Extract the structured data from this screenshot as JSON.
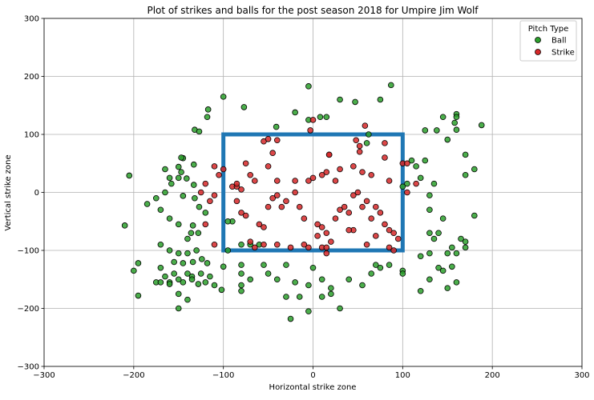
{
  "chart_data": {
    "type": "scatter",
    "title": "Plot of strikes and balls for the post season 2018 for Umpire Jim Wolf",
    "xlabel": "Horizontal strike zone",
    "ylabel": "Vertical strike zone",
    "xlim": [
      -300,
      300
    ],
    "ylim": [
      -300,
      300
    ],
    "xticks": [
      "−300",
      "−200",
      "−100",
      "0",
      "100",
      "200",
      "300"
    ],
    "yticks": [
      "−300",
      "−200",
      "−100",
      "0",
      "100",
      "200",
      "300"
    ],
    "grid": true,
    "legend": {
      "title": "Pitch Type",
      "placement": "top-right"
    },
    "strike_zone": {
      "x": [
        -100,
        100
      ],
      "y": [
        -100,
        100
      ],
      "color": "#1f77b4"
    },
    "series": [
      {
        "name": "Ball",
        "color": "#2ca02c",
        "points": [
          [
            -100,
            165
          ],
          [
            -77,
            147
          ],
          [
            -117,
            143
          ],
          [
            -118,
            130
          ],
          [
            -132,
            108
          ],
          [
            -127,
            105
          ],
          [
            -5,
            183
          ],
          [
            -20,
            138
          ],
          [
            -5,
            125
          ],
          [
            8,
            130
          ],
          [
            15,
            130
          ],
          [
            30,
            160
          ],
          [
            47,
            156
          ],
          [
            75,
            160
          ],
          [
            87,
            185
          ],
          [
            -41,
            113
          ],
          [
            62,
            100
          ],
          [
            160,
            135
          ],
          [
            160,
            130
          ],
          [
            158,
            120
          ],
          [
            145,
            130
          ],
          [
            160,
            108
          ],
          [
            138,
            107
          ],
          [
            125,
            107
          ],
          [
            150,
            91
          ],
          [
            188,
            116
          ],
          [
            170,
            65
          ],
          [
            -205,
            29
          ],
          [
            -145,
            59
          ],
          [
            -147,
            60
          ],
          [
            -150,
            44
          ],
          [
            -147,
            35
          ],
          [
            -133,
            48
          ],
          [
            -165,
            40
          ],
          [
            -160,
            25
          ],
          [
            -150,
            25
          ],
          [
            -133,
            13
          ],
          [
            -141,
            24
          ],
          [
            -158,
            15
          ],
          [
            -165,
            0
          ],
          [
            -175,
            -10
          ],
          [
            -185,
            -20
          ],
          [
            -145,
            -6
          ],
          [
            -132,
            -10
          ],
          [
            -127,
            -25
          ],
          [
            -170,
            -30
          ],
          [
            -160,
            -45
          ],
          [
            -150,
            -55
          ],
          [
            -134,
            -57
          ],
          [
            -128,
            -70
          ],
          [
            -120,
            -35
          ],
          [
            -136,
            -70
          ],
          [
            -210,
            -57
          ],
          [
            -140,
            -80
          ],
          [
            -170,
            -90
          ],
          [
            -160,
            -100
          ],
          [
            -150,
            -105
          ],
          [
            -140,
            -105
          ],
          [
            -130,
            -100
          ],
          [
            -155,
            -120
          ],
          [
            -145,
            -122
          ],
          [
            -134,
            -120
          ],
          [
            -124,
            -115
          ],
          [
            -118,
            -122
          ],
          [
            -200,
            -135
          ],
          [
            -195,
            -122
          ],
          [
            -170,
            -130
          ],
          [
            -155,
            -140
          ],
          [
            -140,
            -140
          ],
          [
            -135,
            -145
          ],
          [
            -125,
            -140
          ],
          [
            -115,
            -145
          ],
          [
            -175,
            -155
          ],
          [
            -165,
            -145
          ],
          [
            -160,
            -155
          ],
          [
            -150,
            -150
          ],
          [
            -145,
            -155
          ],
          [
            -135,
            -150
          ],
          [
            -128,
            -158
          ],
          [
            -120,
            -155
          ],
          [
            -110,
            -160
          ],
          [
            -102,
            -168
          ],
          [
            -170,
            -155
          ],
          [
            -160,
            -158
          ],
          [
            -150,
            -175
          ],
          [
            -140,
            -185
          ],
          [
            -195,
            -178
          ],
          [
            -150,
            -200
          ],
          [
            -100,
            -128
          ],
          [
            -80,
            -125
          ],
          [
            -90,
            -50
          ],
          [
            -80,
            -90
          ],
          [
            -70,
            -90
          ],
          [
            -60,
            -90
          ],
          [
            -55,
            -125
          ],
          [
            -50,
            -140
          ],
          [
            -80,
            -140
          ],
          [
            -70,
            -150
          ],
          [
            -80,
            -160
          ],
          [
            -80,
            -170
          ],
          [
            -40,
            -150
          ],
          [
            -30,
            -180
          ],
          [
            -25,
            -218
          ],
          [
            -15,
            -180
          ],
          [
            -5,
            -160
          ],
          [
            10,
            -180
          ],
          [
            20,
            -175
          ],
          [
            20,
            -165
          ],
          [
            30,
            -200
          ],
          [
            -30,
            -125
          ],
          [
            -20,
            -155
          ],
          [
            0,
            -130
          ],
          [
            10,
            -150
          ],
          [
            -5,
            -205
          ],
          [
            40,
            -150
          ],
          [
            55,
            -160
          ],
          [
            65,
            -140
          ],
          [
            70,
            -125
          ],
          [
            75,
            -130
          ],
          [
            85,
            -125
          ],
          [
            100,
            -135
          ],
          [
            100,
            -140
          ],
          [
            120,
            -110
          ],
          [
            130,
            -105
          ],
          [
            140,
            -130
          ],
          [
            145,
            -135
          ],
          [
            150,
            -105
          ],
          [
            160,
            -105
          ],
          [
            155,
            -128
          ],
          [
            160,
            -155
          ],
          [
            150,
            -165
          ],
          [
            130,
            -150
          ],
          [
            120,
            -170
          ],
          [
            130,
            -70
          ],
          [
            135,
            -80
          ],
          [
            145,
            -45
          ],
          [
            155,
            -95
          ],
          [
            170,
            -85
          ],
          [
            165,
            -80
          ],
          [
            170,
            -95
          ],
          [
            180,
            -40
          ],
          [
            140,
            -70
          ],
          [
            130,
            -30
          ],
          [
            130,
            -5
          ],
          [
            110,
            55
          ],
          [
            125,
            55
          ],
          [
            135,
            15
          ],
          [
            170,
            30
          ],
          [
            180,
            40
          ],
          [
            120,
            25
          ],
          [
            105,
            15
          ],
          [
            115,
            45
          ],
          [
            60,
            85
          ],
          [
            100,
            10
          ],
          [
            -95,
            -50
          ],
          [
            -95,
            -100
          ]
        ]
      },
      {
        "name": "Strike",
        "color": "#d62728",
        "points": [
          [
            -55,
            88
          ],
          [
            -50,
            92
          ],
          [
            -45,
            68
          ],
          [
            -40,
            90
          ],
          [
            -3,
            107
          ],
          [
            0,
            125
          ],
          [
            58,
            115
          ],
          [
            48,
            90
          ],
          [
            52,
            80
          ],
          [
            52,
            70
          ],
          [
            18,
            65
          ],
          [
            18,
            65
          ],
          [
            80,
            85
          ],
          [
            80,
            60
          ],
          [
            100,
            50
          ],
          [
            105,
            50
          ],
          [
            115,
            15
          ],
          [
            105,
            0
          ],
          [
            -100,
            40
          ],
          [
            -105,
            30
          ],
          [
            -110,
            45
          ],
          [
            -120,
            15
          ],
          [
            -125,
            0
          ],
          [
            -110,
            -5
          ],
          [
            -115,
            -15
          ],
          [
            -120,
            -55
          ],
          [
            -110,
            -90
          ],
          [
            -90,
            10
          ],
          [
            -85,
            10
          ],
          [
            -85,
            15
          ],
          [
            -80,
            5
          ],
          [
            -70,
            30
          ],
          [
            -75,
            50
          ],
          [
            -85,
            -15
          ],
          [
            -80,
            -35
          ],
          [
            -75,
            -40
          ],
          [
            -50,
            -25
          ],
          [
            -45,
            -10
          ],
          [
            -40,
            -5
          ],
          [
            -50,
            45
          ],
          [
            -40,
            20
          ],
          [
            -35,
            -25
          ],
          [
            -30,
            -15
          ],
          [
            -20,
            0
          ],
          [
            -15,
            -25
          ],
          [
            -20,
            20
          ],
          [
            -10,
            -45
          ],
          [
            -5,
            20
          ],
          [
            0,
            25
          ],
          [
            5,
            -55
          ],
          [
            10,
            -60
          ],
          [
            15,
            -70
          ],
          [
            10,
            -95
          ],
          [
            15,
            -105
          ],
          [
            25,
            -45
          ],
          [
            30,
            -30
          ],
          [
            35,
            -25
          ],
          [
            40,
            -35
          ],
          [
            45,
            -5
          ],
          [
            50,
            0
          ],
          [
            55,
            -25
          ],
          [
            60,
            -15
          ],
          [
            65,
            -45
          ],
          [
            70,
            -25
          ],
          [
            75,
            -35
          ],
          [
            80,
            -55
          ],
          [
            85,
            -65
          ],
          [
            90,
            -70
          ],
          [
            95,
            -80
          ],
          [
            85,
            -95
          ],
          [
            90,
            -100
          ],
          [
            60,
            -90
          ],
          [
            70,
            -75
          ],
          [
            45,
            -65
          ],
          [
            40,
            -65
          ],
          [
            20,
            -85
          ],
          [
            15,
            -95
          ],
          [
            5,
            -75
          ],
          [
            -5,
            -95
          ],
          [
            -10,
            -90
          ],
          [
            -25,
            -95
          ],
          [
            -40,
            -90
          ],
          [
            -55,
            -90
          ],
          [
            -65,
            -95
          ],
          [
            -70,
            -85
          ],
          [
            -60,
            -55
          ],
          [
            -55,
            -60
          ],
          [
            -65,
            20
          ],
          [
            10,
            30
          ],
          [
            25,
            20
          ],
          [
            15,
            35
          ],
          [
            30,
            40
          ],
          [
            45,
            45
          ],
          [
            55,
            35
          ],
          [
            65,
            30
          ],
          [
            85,
            20
          ]
        ]
      }
    ]
  }
}
